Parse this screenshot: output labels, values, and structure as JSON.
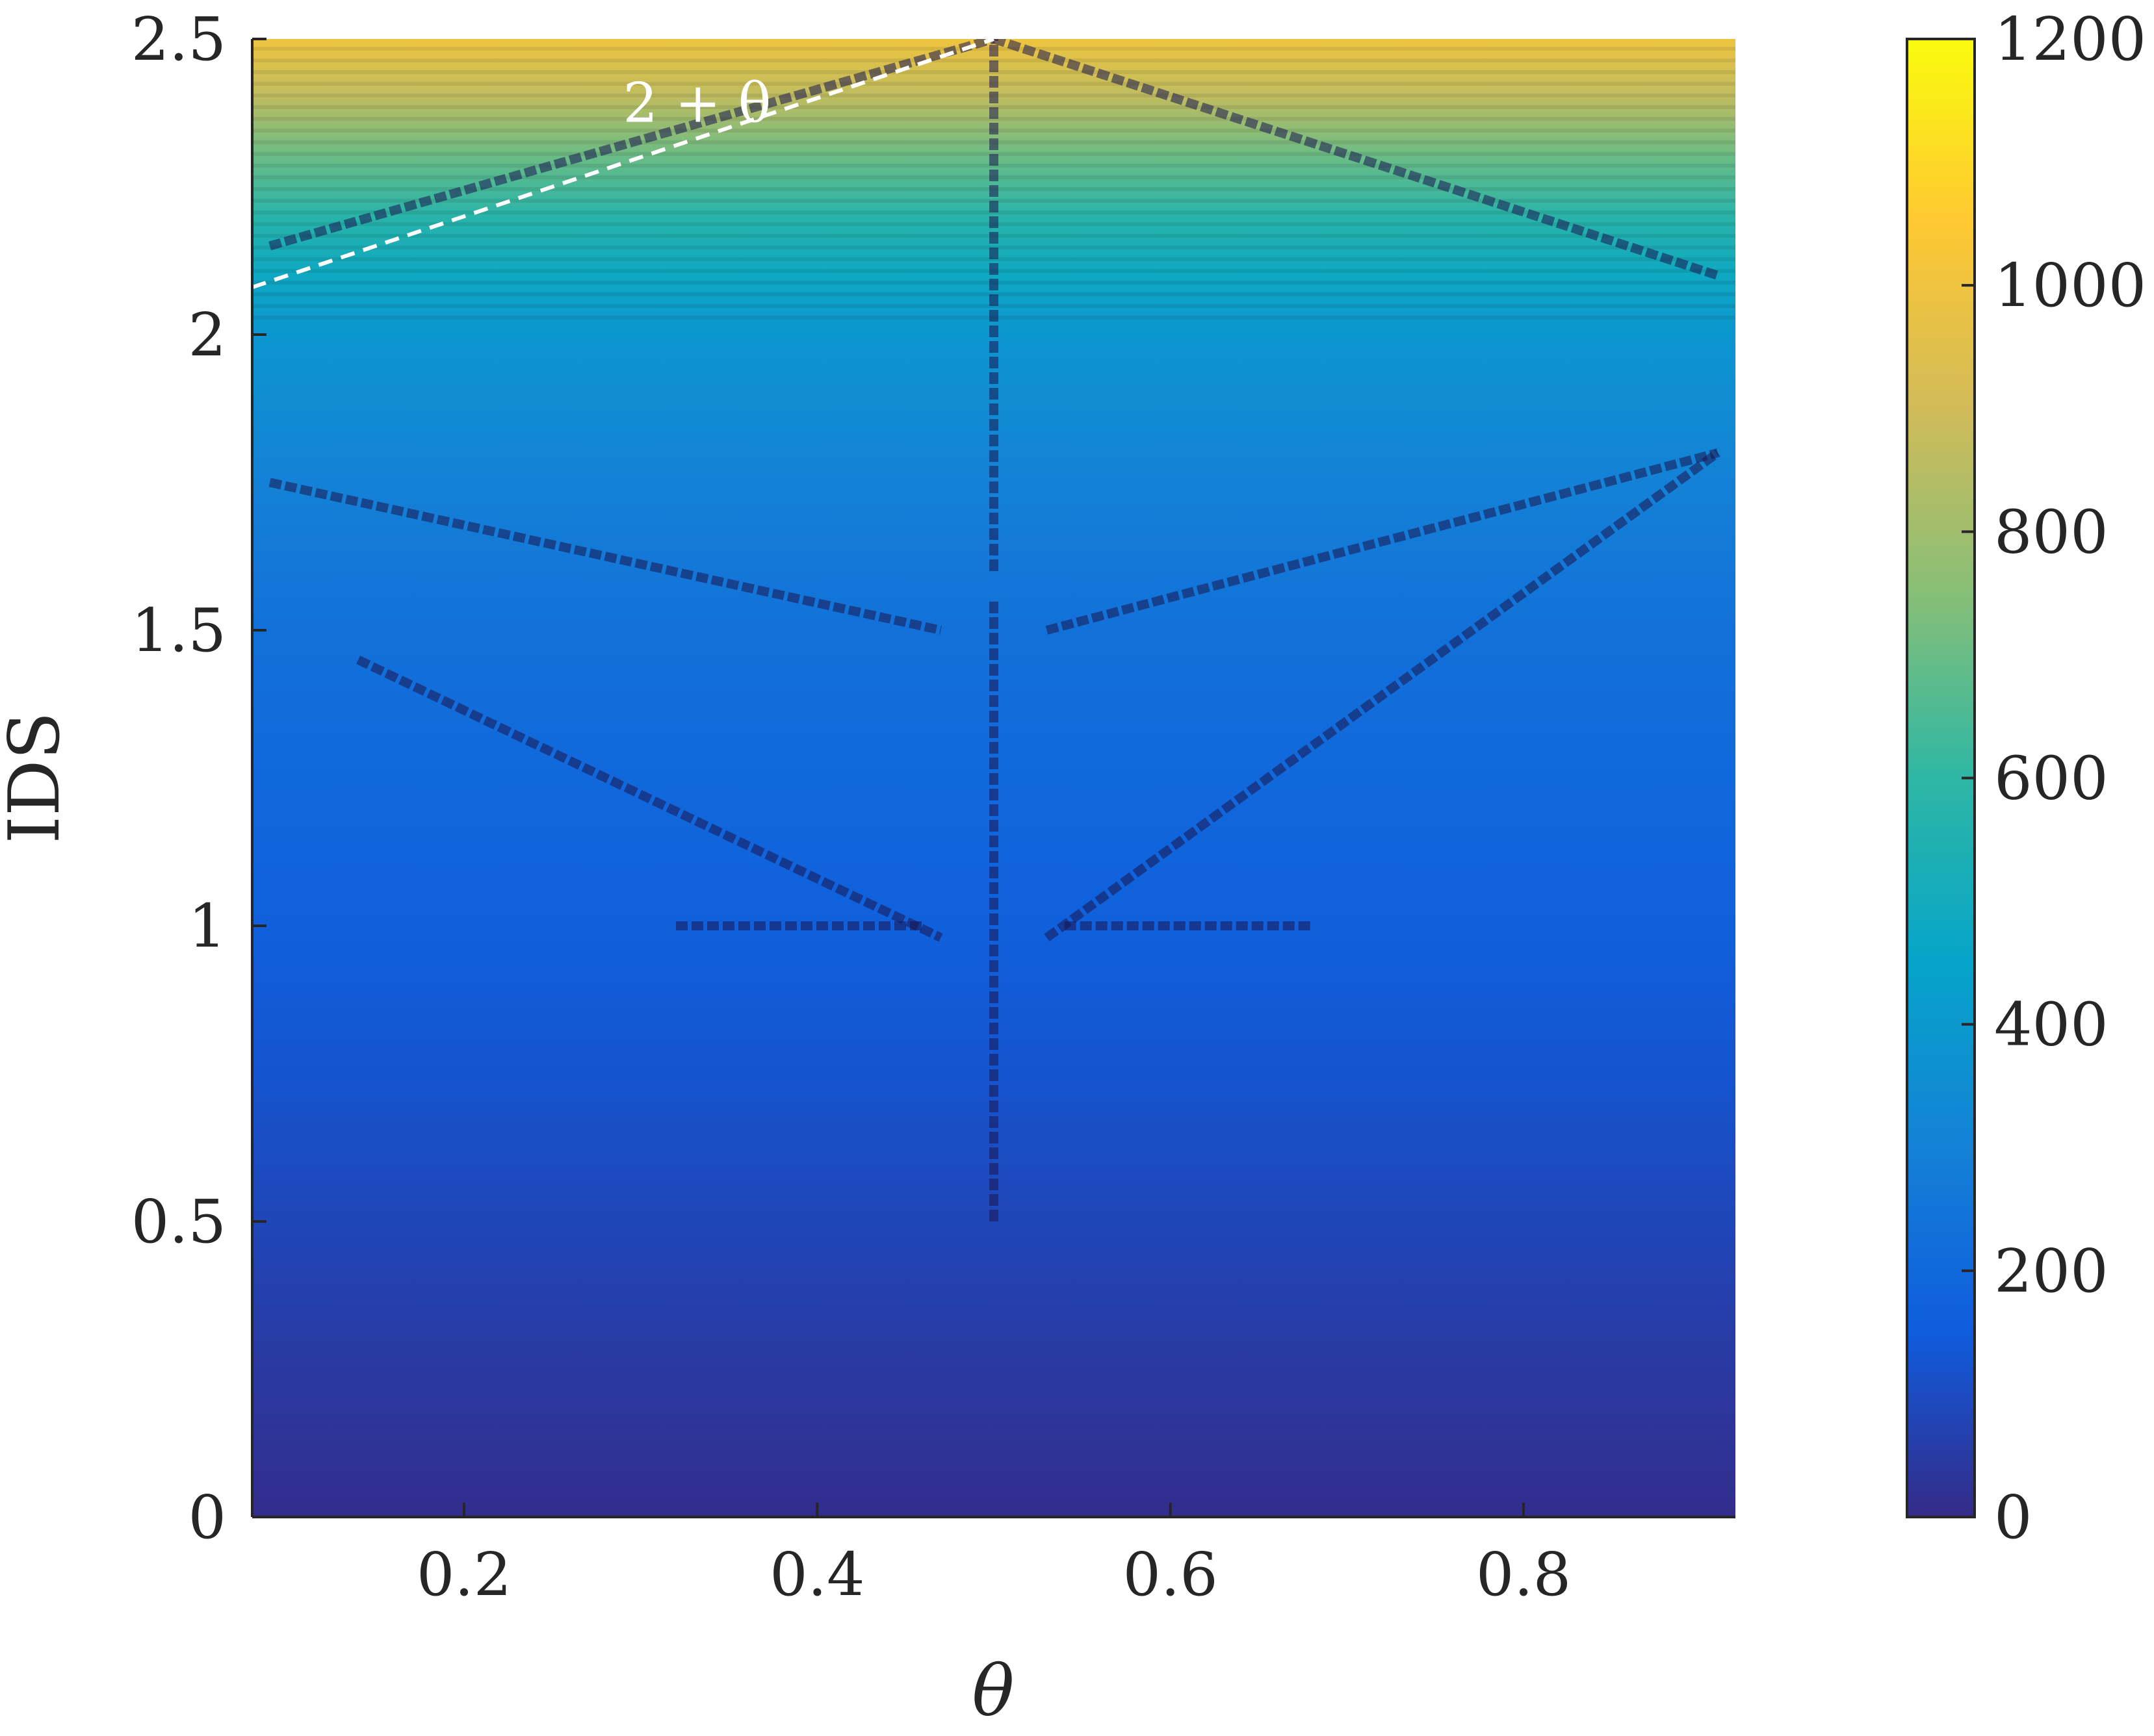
{
  "chart_data": {
    "type": "heatmap",
    "title": "",
    "xlabel": "θ",
    "ylabel": "IDS",
    "xlim": [
      0.08,
      0.92
    ],
    "ylim": [
      0,
      2.5
    ],
    "x_ticks": [
      0.2,
      0.4,
      0.6,
      0.8
    ],
    "x_tick_labels": [
      "0.2",
      "0.4",
      "0.6",
      "0.8"
    ],
    "y_ticks": [
      0,
      0.5,
      1,
      1.5,
      2,
      2.5
    ],
    "y_tick_labels": [
      "0",
      "0.5",
      "1",
      "1.5",
      "2",
      "2.5"
    ],
    "colorbar": {
      "range": [
        0,
        1200
      ],
      "ticks": [
        0,
        200,
        400,
        600,
        800,
        1000,
        1200
      ],
      "tick_labels": [
        "0",
        "200",
        "400",
        "600",
        "800",
        "1000",
        "1200"
      ],
      "colormap": "parula",
      "colormap_stops": [
        "#352a87",
        "#0f5cdd",
        "#1481d6",
        "#06a4ca",
        "#2eb7a4",
        "#87bf77",
        "#d1bb59",
        "#fec832",
        "#f9fb0e"
      ]
    },
    "value_vs_ids": {
      "ids": [
        0,
        0.25,
        0.5,
        0.75,
        1.0,
        1.25,
        1.5,
        1.75,
        2.0,
        2.1,
        2.2,
        2.3,
        2.4,
        2.5
      ],
      "value": [
        10,
        45,
        85,
        125,
        165,
        200,
        235,
        300,
        390,
        480,
        580,
        700,
        860,
        1000
      ]
    },
    "gap_lines": [
      {
        "from": [
          0.09,
          1.75
        ],
        "to": [
          0.47,
          1.5
        ]
      },
      {
        "from": [
          0.53,
          1.5
        ],
        "to": [
          0.91,
          1.8
        ]
      },
      {
        "from": [
          0.14,
          1.45
        ],
        "to": [
          0.47,
          0.98
        ]
      },
      {
        "from": [
          0.53,
          0.98
        ],
        "to": [
          0.91,
          1.8
        ]
      },
      {
        "from": [
          0.09,
          2.15
        ],
        "to": [
          0.5,
          2.5
        ]
      },
      {
        "from": [
          0.5,
          2.5
        ],
        "to": [
          0.91,
          2.1
        ]
      },
      {
        "from": [
          0.32,
          1.0
        ],
        "to": [
          0.46,
          1.0
        ]
      },
      {
        "from": [
          0.54,
          1.0
        ],
        "to": [
          0.68,
          1.0
        ]
      },
      {
        "from": [
          0.5,
          0.5
        ],
        "to": [
          0.5,
          1.55
        ]
      },
      {
        "from": [
          0.5,
          1.6
        ],
        "to": [
          0.5,
          2.5
        ]
      }
    ],
    "annotations": [
      {
        "text": "2 + θ",
        "x": 0.29,
        "y": 2.36
      }
    ],
    "reference_line": {
      "label": "2 + θ",
      "from": [
        0.08,
        2.08
      ],
      "to": [
        0.5,
        2.5
      ],
      "style": "dashed",
      "color": "#ffffff"
    }
  }
}
